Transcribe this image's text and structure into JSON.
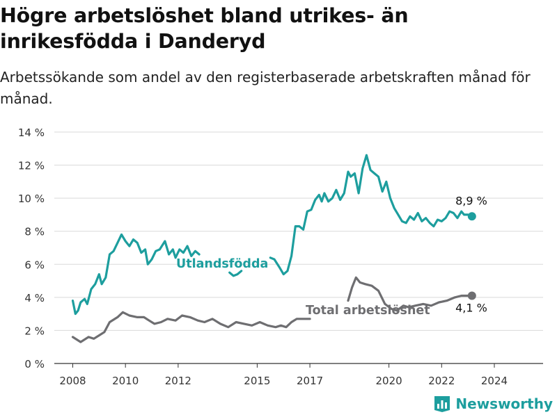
{
  "header": {
    "title": "Högre arbetslöshet bland utrikes- än inrikesfödda i Danderyd",
    "subtitle": "Arbetssökande som andel av den registerbaserade arbetskraften månad för månad."
  },
  "brand": {
    "name": "Newsworthy",
    "color": "#1d9e9e",
    "icon": "bar-chart-logo-icon"
  },
  "chart_data": {
    "type": "line",
    "ylim": [
      0,
      14
    ],
    "xlim": [
      2007.3,
      2025.85
    ],
    "y_ticks": [
      0,
      2,
      4,
      6,
      8,
      10,
      12,
      14
    ],
    "y_tick_labels": [
      "0 %",
      "2 %",
      "4 %",
      "6 %",
      "8 %",
      "10 %",
      "12 %",
      "14 %"
    ],
    "x_ticks": [
      2008,
      2010,
      2012,
      2015,
      2017,
      2020,
      2022,
      2024
    ],
    "x_tick_labels": [
      "2008",
      "2010",
      "2012",
      "2015",
      "2017",
      "2020",
      "2022",
      "2024"
    ],
    "grid": true,
    "series": [
      {
        "name": "Utlandsfödda",
        "color": "#1d9e9e",
        "end_label": "8,9 %",
        "points": [
          [
            2008.0,
            3.8
          ],
          [
            2008.1,
            3.0
          ],
          [
            2008.2,
            3.2
          ],
          [
            2008.3,
            3.7
          ],
          [
            2008.45,
            3.9
          ],
          [
            2008.55,
            3.6
          ],
          [
            2008.7,
            4.5
          ],
          [
            2008.85,
            4.8
          ],
          [
            2009.0,
            5.4
          ],
          [
            2009.1,
            4.8
          ],
          [
            2009.25,
            5.2
          ],
          [
            2009.4,
            6.6
          ],
          [
            2009.55,
            6.8
          ],
          [
            2009.7,
            7.3
          ],
          [
            2009.85,
            7.8
          ],
          [
            2010.0,
            7.4
          ],
          [
            2010.15,
            7.1
          ],
          [
            2010.3,
            7.5
          ],
          [
            2010.45,
            7.3
          ],
          [
            2010.6,
            6.7
          ],
          [
            2010.75,
            6.9
          ],
          [
            2010.85,
            6.0
          ],
          [
            2011.0,
            6.3
          ],
          [
            2011.15,
            6.8
          ],
          [
            2011.3,
            6.9
          ],
          [
            2011.5,
            7.4
          ],
          [
            2011.65,
            6.6
          ],
          [
            2011.8,
            6.9
          ],
          [
            2011.9,
            6.4
          ],
          [
            2012.05,
            6.9
          ],
          [
            2012.2,
            6.7
          ],
          [
            2012.35,
            7.1
          ],
          [
            2012.5,
            6.5
          ],
          [
            2012.65,
            6.8
          ],
          [
            2012.8,
            6.6
          ],
          [
            2013.95,
            5.5
          ],
          [
            2014.1,
            5.3
          ],
          [
            2014.25,
            5.4
          ],
          [
            2014.4,
            5.6
          ],
          [
            2015.5,
            6.4
          ],
          [
            2015.65,
            6.3
          ],
          [
            2015.85,
            5.8
          ],
          [
            2016.0,
            5.4
          ],
          [
            2016.15,
            5.6
          ],
          [
            2016.3,
            6.5
          ],
          [
            2016.45,
            8.3
          ],
          [
            2016.6,
            8.3
          ],
          [
            2016.75,
            8.1
          ],
          [
            2016.9,
            9.2
          ],
          [
            2017.05,
            9.3
          ],
          [
            2017.2,
            9.9
          ],
          [
            2017.35,
            10.2
          ],
          [
            2017.45,
            9.8
          ],
          [
            2017.55,
            10.3
          ],
          [
            2017.7,
            9.8
          ],
          [
            2017.85,
            10.0
          ],
          [
            2018.0,
            10.5
          ],
          [
            2018.15,
            9.9
          ],
          [
            2018.3,
            10.3
          ],
          [
            2018.45,
            11.6
          ],
          [
            2018.55,
            11.3
          ],
          [
            2018.7,
            11.5
          ],
          [
            2018.85,
            10.3
          ],
          [
            2019.0,
            11.8
          ],
          [
            2019.15,
            12.6
          ],
          [
            2019.3,
            11.7
          ],
          [
            2019.45,
            11.5
          ],
          [
            2019.6,
            11.3
          ],
          [
            2019.75,
            10.4
          ],
          [
            2019.9,
            11.0
          ],
          [
            2020.05,
            10.0
          ],
          [
            2020.2,
            9.4
          ],
          [
            2020.35,
            9.0
          ],
          [
            2020.5,
            8.6
          ],
          [
            2020.65,
            8.5
          ],
          [
            2020.8,
            8.9
          ],
          [
            2020.95,
            8.7
          ],
          [
            2021.1,
            9.1
          ],
          [
            2021.25,
            8.6
          ],
          [
            2021.4,
            8.8
          ],
          [
            2021.55,
            8.5
          ],
          [
            2021.7,
            8.3
          ],
          [
            2021.85,
            8.7
          ],
          [
            2022.0,
            8.6
          ],
          [
            2022.15,
            8.8
          ],
          [
            2022.3,
            9.2
          ],
          [
            2022.45,
            9.1
          ],
          [
            2022.6,
            8.8
          ],
          [
            2022.75,
            9.2
          ],
          [
            2022.85,
            9.0
          ],
          [
            2023.0,
            9.0
          ],
          [
            2023.15,
            8.9
          ]
        ]
      },
      {
        "name": "Total arbetslöshet",
        "color": "#6e6e71",
        "end_label": "4,1 %",
        "points": [
          [
            2008.0,
            1.6
          ],
          [
            2008.3,
            1.3
          ],
          [
            2008.6,
            1.6
          ],
          [
            2008.8,
            1.5
          ],
          [
            2009.0,
            1.7
          ],
          [
            2009.2,
            1.9
          ],
          [
            2009.4,
            2.5
          ],
          [
            2009.7,
            2.8
          ],
          [
            2009.9,
            3.1
          ],
          [
            2010.15,
            2.9
          ],
          [
            2010.45,
            2.8
          ],
          [
            2010.7,
            2.8
          ],
          [
            2010.9,
            2.6
          ],
          [
            2011.1,
            2.4
          ],
          [
            2011.35,
            2.5
          ],
          [
            2011.6,
            2.7
          ],
          [
            2011.9,
            2.6
          ],
          [
            2012.15,
            2.9
          ],
          [
            2012.45,
            2.8
          ],
          [
            2012.75,
            2.6
          ],
          [
            2013.0,
            2.5
          ],
          [
            2013.3,
            2.7
          ],
          [
            2013.6,
            2.4
          ],
          [
            2013.9,
            2.2
          ],
          [
            2014.2,
            2.5
          ],
          [
            2014.5,
            2.4
          ],
          [
            2014.8,
            2.3
          ],
          [
            2015.1,
            2.5
          ],
          [
            2015.4,
            2.3
          ],
          [
            2015.7,
            2.2
          ],
          [
            2015.9,
            2.3
          ],
          [
            2016.1,
            2.2
          ],
          [
            2016.3,
            2.5
          ],
          [
            2016.5,
            2.7
          ],
          [
            2016.75,
            2.7
          ],
          [
            2017.0,
            2.7
          ],
          [
            2018.45,
            3.8
          ],
          [
            2018.6,
            4.6
          ],
          [
            2018.75,
            5.2
          ],
          [
            2018.9,
            4.9
          ],
          [
            2019.1,
            4.8
          ],
          [
            2019.35,
            4.7
          ],
          [
            2019.6,
            4.4
          ],
          [
            2019.85,
            3.6
          ],
          [
            2020.1,
            3.3
          ],
          [
            2020.3,
            3.2
          ],
          [
            2020.55,
            3.5
          ],
          [
            2020.75,
            3.4
          ],
          [
            2021.0,
            3.5
          ],
          [
            2021.3,
            3.6
          ],
          [
            2021.6,
            3.5
          ],
          [
            2021.9,
            3.7
          ],
          [
            2022.2,
            3.8
          ],
          [
            2022.5,
            4.0
          ],
          [
            2022.75,
            4.1
          ],
          [
            2023.0,
            4.1
          ],
          [
            2023.15,
            4.1
          ]
        ]
      }
    ],
    "annotations": [
      {
        "text": "Utlandsfödda",
        "series": 0
      },
      {
        "text": "Total arbetslöshet",
        "series": 1
      }
    ]
  }
}
